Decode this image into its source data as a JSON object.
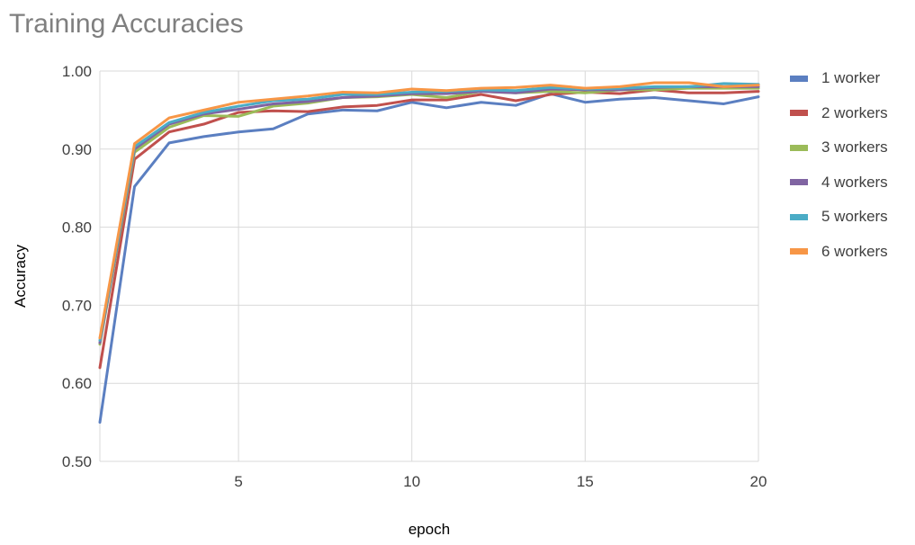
{
  "chart_data": {
    "type": "line",
    "title": "Training Accuracies",
    "xlabel": "epoch",
    "ylabel": "Accuracy",
    "xlim": [
      1,
      20
    ],
    "ylim": [
      0.5,
      1.0
    ],
    "xticks": [
      5,
      10,
      15,
      20
    ],
    "yticks": [
      "0.50",
      "0.60",
      "0.70",
      "0.80",
      "0.90",
      "1.00"
    ],
    "grid": true,
    "legend_position": "right",
    "x": [
      1,
      2,
      3,
      4,
      5,
      6,
      7,
      8,
      9,
      10,
      11,
      12,
      13,
      14,
      15,
      16,
      17,
      18,
      19,
      20
    ],
    "series": [
      {
        "name": "1 worker",
        "color": "#5b7fc1",
        "values": [
          0.55,
          0.852,
          0.908,
          0.916,
          0.922,
          0.926,
          0.945,
          0.95,
          0.949,
          0.96,
          0.953,
          0.96,
          0.956,
          0.971,
          0.96,
          0.964,
          0.966,
          0.962,
          0.958,
          0.967
        ]
      },
      {
        "name": "2 workers",
        "color": "#c0504d",
        "values": [
          0.62,
          0.887,
          0.922,
          0.932,
          0.947,
          0.949,
          0.948,
          0.954,
          0.956,
          0.963,
          0.963,
          0.97,
          0.962,
          0.97,
          0.973,
          0.971,
          0.976,
          0.972,
          0.972,
          0.974
        ]
      },
      {
        "name": "3 workers",
        "color": "#9bbb59",
        "values": [
          0.65,
          0.896,
          0.928,
          0.943,
          0.942,
          0.955,
          0.959,
          0.966,
          0.967,
          0.97,
          0.966,
          0.974,
          0.972,
          0.974,
          0.972,
          0.976,
          0.976,
          0.978,
          0.978,
          0.978
        ]
      },
      {
        "name": "4 workers",
        "color": "#8064a2",
        "values": [
          0.652,
          0.9,
          0.932,
          0.945,
          0.951,
          0.958,
          0.961,
          0.966,
          0.968,
          0.971,
          0.971,
          0.974,
          0.972,
          0.977,
          0.976,
          0.976,
          0.979,
          0.98,
          0.98,
          0.98
        ]
      },
      {
        "name": "5 workers",
        "color": "#4bacc6",
        "values": [
          0.655,
          0.903,
          0.934,
          0.947,
          0.955,
          0.962,
          0.964,
          0.97,
          0.97,
          0.973,
          0.974,
          0.976,
          0.975,
          0.979,
          0.977,
          0.978,
          0.98,
          0.98,
          0.984,
          0.983
        ]
      },
      {
        "name": "6 workers",
        "color": "#f79646",
        "values": [
          0.658,
          0.907,
          0.94,
          0.95,
          0.96,
          0.964,
          0.968,
          0.973,
          0.972,
          0.977,
          0.975,
          0.978,
          0.979,
          0.982,
          0.978,
          0.98,
          0.985,
          0.985,
          0.98,
          0.982
        ]
      }
    ]
  }
}
